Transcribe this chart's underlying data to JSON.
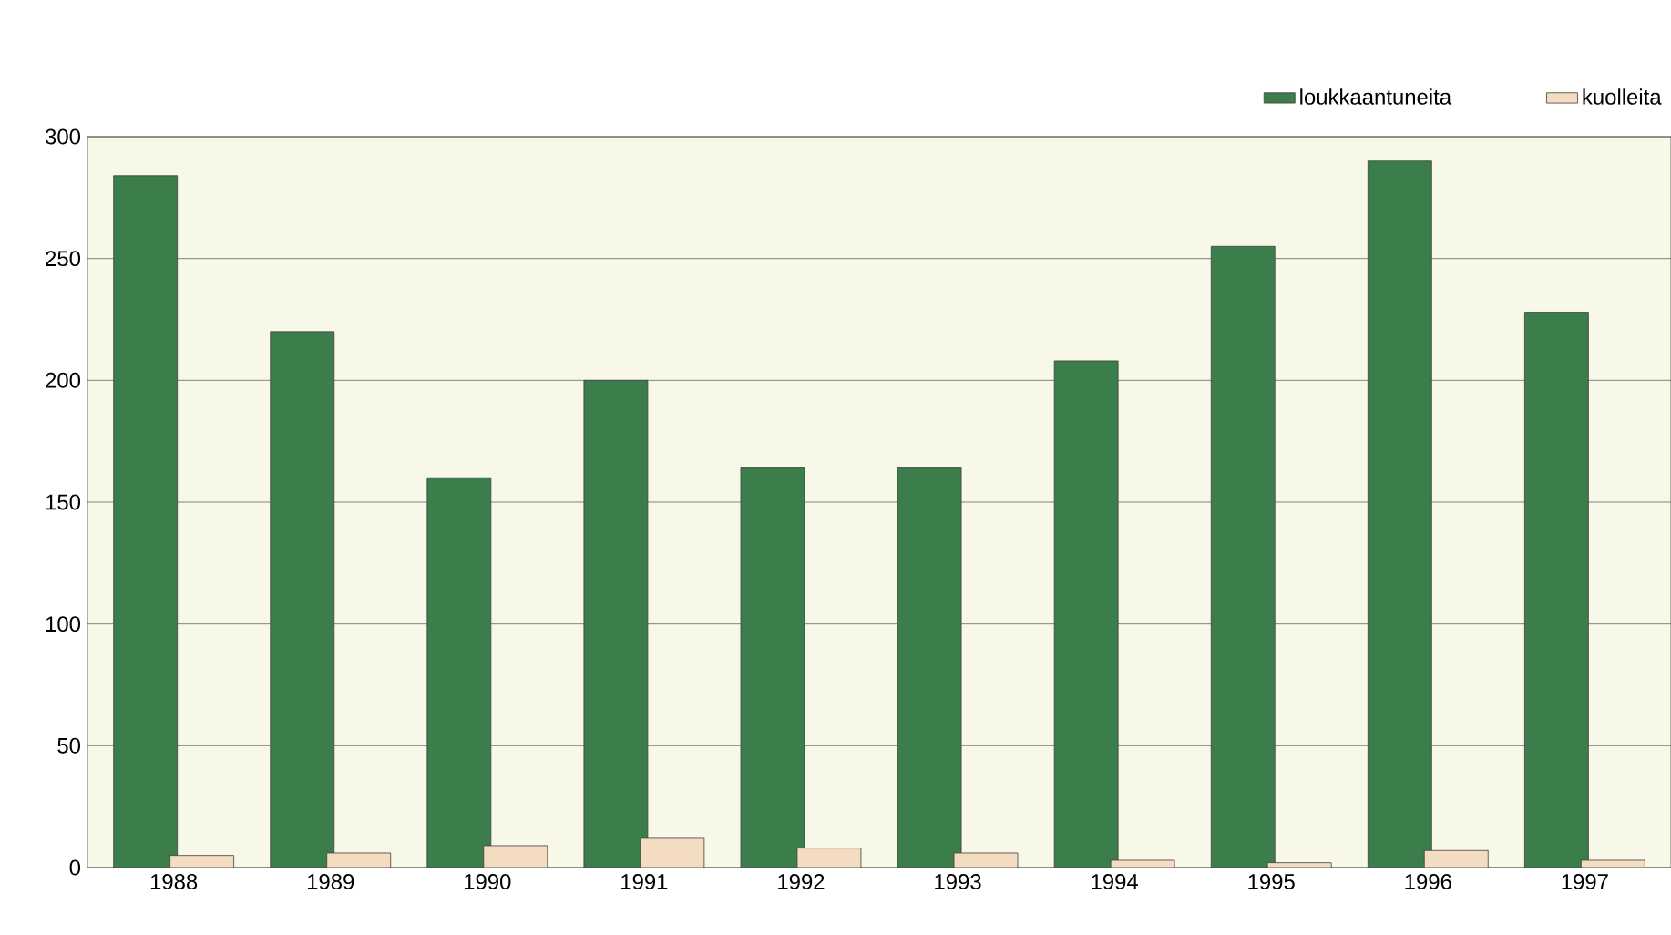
{
  "chart_data": {
    "type": "bar",
    "categories": [
      "1988",
      "1989",
      "1990",
      "1991",
      "1992",
      "1993",
      "1994",
      "1995",
      "1996",
      "1997"
    ],
    "series": [
      {
        "name": "loukkaantuneita",
        "color": "#3b7d4b",
        "values": [
          284,
          220,
          160,
          200,
          164,
          164,
          208,
          255,
          290,
          228
        ]
      },
      {
        "name": "kuolleita",
        "color": "#f3dcbf",
        "values": [
          5,
          6,
          9,
          12,
          8,
          6,
          3,
          2,
          7,
          3
        ]
      }
    ],
    "ylim": [
      0,
      300
    ],
    "yticks": [
      0,
      50,
      100,
      150,
      200,
      250,
      300
    ],
    "grid": "y",
    "legend": "top right"
  }
}
